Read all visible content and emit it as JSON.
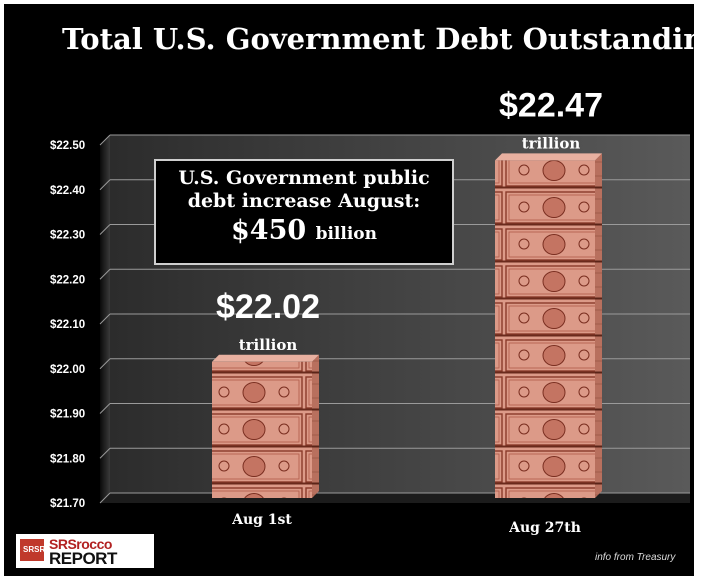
{
  "chart_data": {
    "type": "bar",
    "title": "Total U.S. Government Debt Outstanding",
    "categories": [
      "Aug 1st",
      "Aug 27th"
    ],
    "values": [
      22.02,
      22.47
    ],
    "value_labels": [
      "$22.02",
      "$22.47"
    ],
    "unit_label": "trillion",
    "ylim": [
      21.7,
      22.5
    ],
    "yticks": [
      "$22.50",
      "$22.40",
      "$22.30",
      "$22.20",
      "$22.10",
      "$22.00",
      "$21.90",
      "$21.80",
      "$21.70"
    ],
    "grid": true,
    "annotation": {
      "line1": "U.S. Government public",
      "line2": "debt increase August:",
      "amount": "$450",
      "amount_unit": "billion"
    },
    "colors": {
      "background": "#000000",
      "bar": "#e0a090",
      "grid": "#9a9a9a"
    }
  },
  "logo": {
    "line1": "SRSrocco",
    "line2": "REPORT",
    "mark": "SRSR"
  },
  "source": "info from Treasury"
}
